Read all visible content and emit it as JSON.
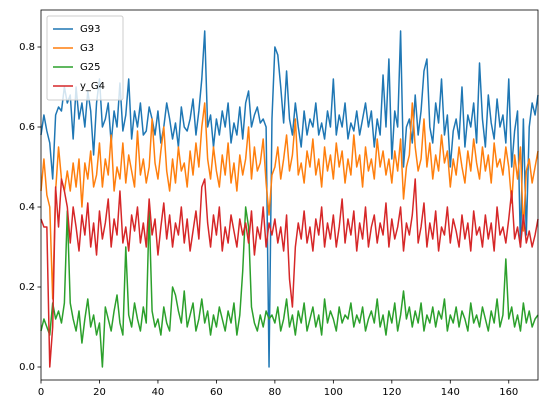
{
  "chart_data": {
    "type": "line",
    "x": [
      0,
      1,
      2,
      3,
      4,
      5,
      6,
      7,
      8,
      9,
      10,
      11,
      12,
      13,
      14,
      15,
      16,
      17,
      18,
      19,
      20,
      21,
      22,
      23,
      24,
      25,
      26,
      27,
      28,
      29,
      30,
      31,
      32,
      33,
      34,
      35,
      36,
      37,
      38,
      39,
      40,
      41,
      42,
      43,
      44,
      45,
      46,
      47,
      48,
      49,
      50,
      51,
      52,
      53,
      54,
      55,
      56,
      57,
      58,
      59,
      60,
      61,
      62,
      63,
      64,
      65,
      66,
      67,
      68,
      69,
      70,
      71,
      72,
      73,
      74,
      75,
      76,
      77,
      78,
      79,
      80,
      81,
      82,
      83,
      84,
      85,
      86,
      87,
      88,
      89,
      90,
      91,
      92,
      93,
      94,
      95,
      96,
      97,
      98,
      99,
      100,
      101,
      102,
      103,
      104,
      105,
      106,
      107,
      108,
      109,
      110,
      111,
      112,
      113,
      114,
      115,
      116,
      117,
      118,
      119,
      120,
      121,
      122,
      123,
      124,
      125,
      126,
      127,
      128,
      129,
      130,
      131,
      132,
      133,
      134,
      135,
      136,
      137,
      138,
      139,
      140,
      141,
      142,
      143,
      144,
      145,
      146,
      147,
      148,
      149,
      150,
      151,
      152,
      153,
      154,
      155,
      156,
      157,
      158,
      159,
      160,
      161,
      162,
      163,
      164,
      165,
      166,
      167,
      168,
      169,
      170
    ],
    "series": [
      {
        "name": "G93",
        "color": "#1f77b4",
        "values": [
          0.58,
          0.63,
          0.59,
          0.56,
          0.47,
          0.63,
          0.65,
          0.64,
          0.7,
          0.66,
          0.68,
          0.57,
          0.7,
          0.62,
          0.66,
          0.6,
          0.69,
          0.64,
          0.53,
          0.66,
          0.72,
          0.6,
          0.62,
          0.66,
          0.56,
          0.64,
          0.6,
          0.71,
          0.59,
          0.63,
          0.72,
          0.57,
          0.64,
          0.6,
          0.66,
          0.58,
          0.59,
          0.65,
          0.62,
          0.58,
          0.64,
          0.56,
          0.6,
          0.66,
          0.62,
          0.57,
          0.61,
          0.55,
          0.65,
          0.6,
          0.59,
          0.62,
          0.67,
          0.58,
          0.64,
          0.72,
          0.84,
          0.6,
          0.63,
          0.55,
          0.62,
          0.58,
          0.64,
          0.6,
          0.66,
          0.56,
          0.61,
          0.58,
          0.65,
          0.57,
          0.66,
          0.69,
          0.6,
          0.63,
          0.65,
          0.61,
          0.62,
          0.6,
          0.0,
          0.62,
          0.8,
          0.78,
          0.7,
          0.61,
          0.74,
          0.62,
          0.58,
          0.66,
          0.6,
          0.55,
          0.64,
          0.58,
          0.62,
          0.6,
          0.66,
          0.58,
          0.61,
          0.57,
          0.64,
          0.6,
          0.72,
          0.58,
          0.63,
          0.6,
          0.66,
          0.57,
          0.61,
          0.59,
          0.64,
          0.58,
          0.62,
          0.66,
          0.6,
          0.64,
          0.55,
          0.62,
          0.58,
          0.73,
          0.6,
          0.77,
          0.52,
          0.64,
          0.6,
          0.84,
          0.5,
          0.6,
          0.62,
          0.56,
          0.68,
          0.58,
          0.64,
          0.74,
          0.77,
          0.6,
          0.56,
          0.66,
          0.61,
          0.72,
          0.58,
          0.63,
          0.5,
          0.59,
          0.62,
          0.57,
          0.7,
          0.55,
          0.63,
          0.6,
          0.66,
          0.56,
          0.76,
          0.62,
          0.55,
          0.68,
          0.61,
          0.57,
          0.67,
          0.6,
          0.63,
          0.56,
          0.72,
          0.5,
          0.59,
          0.64,
          0.3,
          0.62,
          0.33,
          0.6,
          0.66,
          0.63,
          0.68
        ]
      },
      {
        "name": "G3",
        "color": "#ff7f0e",
        "values": [
          0.44,
          0.52,
          0.43,
          0.4,
          0.17,
          0.44,
          0.55,
          0.47,
          0.44,
          0.49,
          0.44,
          0.51,
          0.45,
          0.52,
          0.4,
          0.51,
          0.47,
          0.54,
          0.45,
          0.48,
          0.56,
          0.45,
          0.52,
          0.48,
          0.58,
          0.44,
          0.5,
          0.47,
          0.56,
          0.46,
          0.53,
          0.49,
          0.45,
          0.59,
          0.48,
          0.52,
          0.46,
          0.5,
          0.62,
          0.51,
          0.47,
          0.54,
          0.6,
          0.49,
          0.44,
          0.52,
          0.46,
          0.55,
          0.49,
          0.51,
          0.45,
          0.54,
          0.48,
          0.56,
          0.5,
          0.6,
          0.66,
          0.52,
          0.47,
          0.55,
          0.49,
          0.45,
          0.53,
          0.48,
          0.56,
          0.46,
          0.51,
          0.44,
          0.53,
          0.48,
          0.52,
          0.6,
          0.47,
          0.55,
          0.49,
          0.51,
          0.57,
          0.46,
          0.38,
          0.48,
          0.5,
          0.55,
          0.47,
          0.52,
          0.58,
          0.49,
          0.53,
          0.62,
          0.48,
          0.51,
          0.46,
          0.54,
          0.5,
          0.57,
          0.48,
          0.52,
          0.45,
          0.55,
          0.49,
          0.53,
          0.47,
          0.56,
          0.5,
          0.54,
          0.46,
          0.52,
          0.48,
          0.58,
          0.5,
          0.53,
          0.45,
          0.55,
          0.49,
          0.52,
          0.47,
          0.57,
          0.5,
          0.54,
          0.48,
          0.52,
          0.46,
          0.54,
          0.49,
          0.57,
          0.42,
          0.5,
          0.53,
          0.66,
          0.55,
          0.49,
          0.52,
          0.62,
          0.5,
          0.56,
          0.47,
          0.53,
          0.49,
          0.58,
          0.51,
          0.54,
          0.45,
          0.52,
          0.48,
          0.55,
          0.5,
          0.46,
          0.54,
          0.49,
          0.57,
          0.51,
          0.47,
          0.55,
          0.49,
          0.53,
          0.46,
          0.56,
          0.5,
          0.52,
          0.48,
          0.55,
          0.5,
          0.41,
          0.53,
          0.47,
          0.55,
          0.34,
          0.49,
          0.52,
          0.46,
          0.5,
          0.54
        ]
      },
      {
        "name": "G25",
        "color": "#2ca02c",
        "values": [
          0.09,
          0.12,
          0.1,
          0.08,
          0.16,
          0.12,
          0.14,
          0.11,
          0.16,
          0.39,
          0.16,
          0.12,
          0.09,
          0.14,
          0.06,
          0.12,
          0.17,
          0.1,
          0.13,
          0.08,
          0.11,
          0.0,
          0.15,
          0.12,
          0.09,
          0.14,
          0.18,
          0.11,
          0.08,
          0.3,
          0.13,
          0.1,
          0.16,
          0.12,
          0.09,
          0.15,
          0.11,
          0.39,
          0.14,
          0.1,
          0.12,
          0.08,
          0.15,
          0.11,
          0.09,
          0.2,
          0.18,
          0.14,
          0.11,
          0.19,
          0.1,
          0.13,
          0.16,
          0.09,
          0.12,
          0.17,
          0.11,
          0.14,
          0.08,
          0.13,
          0.1,
          0.15,
          0.12,
          0.09,
          0.14,
          0.11,
          0.16,
          0.08,
          0.13,
          0.24,
          0.4,
          0.35,
          0.15,
          0.11,
          0.09,
          0.13,
          0.1,
          0.14,
          0.12,
          0.13,
          0.11,
          0.15,
          0.09,
          0.12,
          0.17,
          0.1,
          0.13,
          0.08,
          0.14,
          0.11,
          0.16,
          0.09,
          0.12,
          0.15,
          0.1,
          0.13,
          0.08,
          0.17,
          0.11,
          0.14,
          0.12,
          0.09,
          0.15,
          0.11,
          0.13,
          0.12,
          0.16,
          0.1,
          0.13,
          0.11,
          0.15,
          0.09,
          0.12,
          0.14,
          0.11,
          0.17,
          0.1,
          0.13,
          0.08,
          0.14,
          0.11,
          0.16,
          0.09,
          0.13,
          0.19,
          0.12,
          0.15,
          0.1,
          0.14,
          0.11,
          0.16,
          0.09,
          0.13,
          0.11,
          0.15,
          0.1,
          0.14,
          0.12,
          0.17,
          0.09,
          0.13,
          0.11,
          0.15,
          0.1,
          0.14,
          0.12,
          0.09,
          0.16,
          0.11,
          0.13,
          0.1,
          0.15,
          0.12,
          0.09,
          0.14,
          0.11,
          0.17,
          0.1,
          0.13,
          0.27,
          0.12,
          0.15,
          0.1,
          0.13,
          0.09,
          0.16,
          0.11,
          0.14,
          0.1,
          0.12,
          0.13
        ]
      },
      {
        "name": "y_G4",
        "color": "#d62728",
        "values": [
          0.37,
          0.35,
          0.35,
          0.0,
          0.1,
          0.45,
          0.35,
          0.47,
          0.44,
          0.4,
          0.31,
          0.4,
          0.35,
          0.29,
          0.38,
          0.33,
          0.41,
          0.3,
          0.36,
          0.28,
          0.39,
          0.32,
          0.36,
          0.42,
          0.3,
          0.37,
          0.33,
          0.44,
          0.31,
          0.35,
          0.29,
          0.38,
          0.34,
          0.4,
          0.31,
          0.36,
          0.3,
          0.42,
          0.33,
          0.37,
          0.28,
          0.35,
          0.41,
          0.32,
          0.38,
          0.3,
          0.36,
          0.33,
          0.4,
          0.31,
          0.37,
          0.29,
          0.34,
          0.39,
          0.32,
          0.45,
          0.47,
          0.36,
          0.3,
          0.38,
          0.33,
          0.4,
          0.29,
          0.35,
          0.31,
          0.38,
          0.34,
          0.3,
          0.37,
          0.33,
          0.36,
          0.31,
          0.39,
          0.28,
          0.35,
          0.32,
          0.4,
          0.3,
          0.36,
          0.33,
          0.37,
          0.31,
          0.35,
          0.29,
          0.38,
          0.22,
          0.15,
          0.3,
          0.36,
          0.32,
          0.39,
          0.31,
          0.35,
          0.29,
          0.37,
          0.33,
          0.4,
          0.3,
          0.36,
          0.32,
          0.38,
          0.3,
          0.35,
          0.42,
          0.31,
          0.37,
          0.33,
          0.39,
          0.29,
          0.36,
          0.32,
          0.4,
          0.3,
          0.35,
          0.38,
          0.31,
          0.36,
          0.33,
          0.41,
          0.3,
          0.37,
          0.32,
          0.35,
          0.4,
          0.29,
          0.36,
          0.33,
          0.38,
          0.47,
          0.31,
          0.35,
          0.41,
          0.3,
          0.36,
          0.32,
          0.39,
          0.29,
          0.35,
          0.33,
          0.4,
          0.31,
          0.37,
          0.34,
          0.3,
          0.38,
          0.32,
          0.36,
          0.29,
          0.39,
          0.33,
          0.35,
          0.3,
          0.38,
          0.32,
          0.36,
          0.29,
          0.4,
          0.33,
          0.35,
          0.31,
          0.37,
          0.44,
          0.32,
          0.35,
          0.3,
          0.38,
          0.31,
          0.34,
          0.3,
          0.33,
          0.37
        ]
      }
    ],
    "xlim": [
      0,
      170
    ],
    "xticks": [
      0,
      20,
      40,
      60,
      80,
      100,
      120,
      140,
      160
    ],
    "ylim": [
      -0.0325,
      0.8925
    ],
    "yticks": [
      {
        "value": 0,
        "label": "0.0"
      },
      {
        "value": 0.2,
        "label": "0.2"
      },
      {
        "value": 0.4,
        "label": "0.4"
      },
      {
        "value": 0.6,
        "label": "0.6"
      },
      {
        "value": 0.8,
        "label": "0.8"
      }
    ],
    "grid": false,
    "legend": "upper left"
  }
}
